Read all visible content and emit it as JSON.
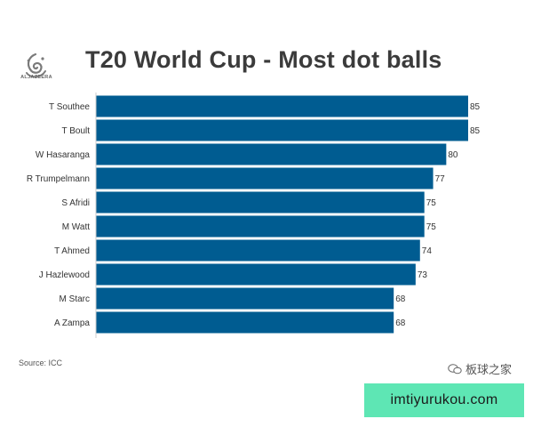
{
  "brand": {
    "logo_text": "ALJAZEERA"
  },
  "footer": {
    "source": "Source: ICC",
    "watermark": "板球之家",
    "site": "imtiyurukou.com"
  },
  "chart_data": {
    "type": "bar",
    "orientation": "horizontal",
    "title": "T20 World Cup - Most dot balls",
    "categories": [
      "T Southee",
      "T Boult",
      "W Hasaranga",
      "R Trumpelmann",
      "S Afridi",
      "M Watt",
      "T Ahmed",
      "J Hazlewood",
      "M Starc",
      "A Zampa"
    ],
    "values": [
      85,
      85,
      80,
      77,
      75,
      75,
      74,
      73,
      68,
      68
    ],
    "xlim": [
      0,
      85
    ],
    "grid": false,
    "legend": "none",
    "bar_color": "#005c91"
  }
}
